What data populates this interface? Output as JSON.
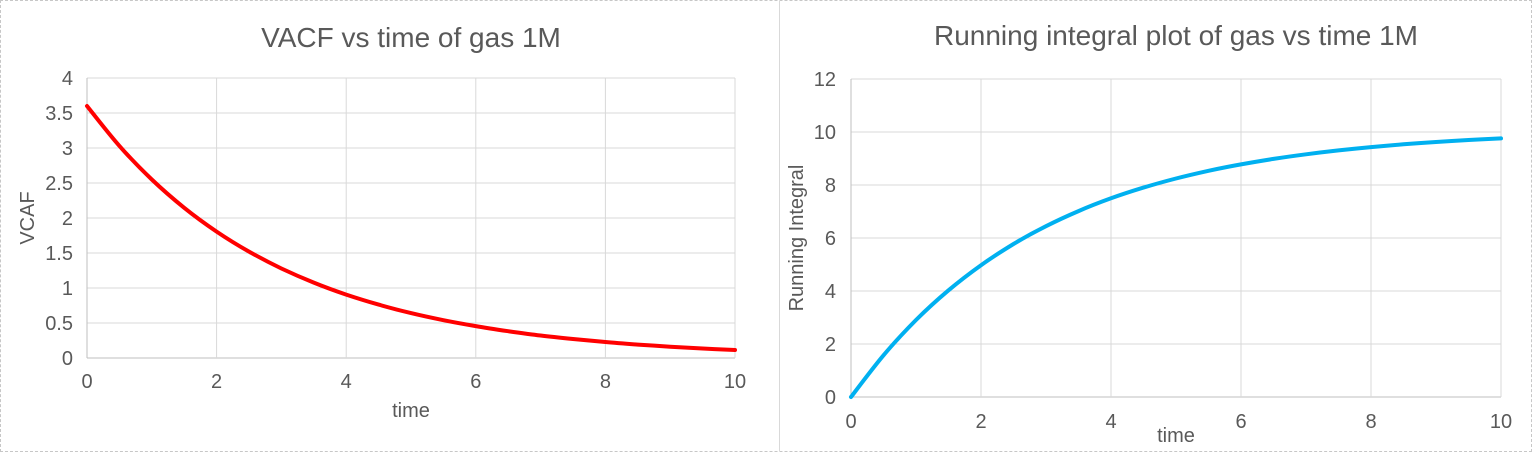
{
  "theme": {
    "background": "#ffffff",
    "text_color": "#595959",
    "grid_color": "#d9d9d9",
    "axis_color": "#bfbfbf",
    "panel_border_color": "#d9d9d9",
    "outer_border_color": "#c7c7c7"
  },
  "chart_data": [
    {
      "type": "line",
      "title": "VACF vs time of gas 1M",
      "xlabel": "time",
      "ylabel": "VCAF",
      "xlim": [
        0,
        10
      ],
      "ylim": [
        0,
        4
      ],
      "x_ticks": [
        "0",
        "2",
        "4",
        "6",
        "8",
        "10"
      ],
      "y_ticks": [
        "0",
        "0.5",
        "1",
        "1.5",
        "2",
        "2.5",
        "3",
        "3.5",
        "4"
      ],
      "grid": true,
      "legend": "none",
      "series": [
        {
          "color": "#ff0000",
          "x": [
            0,
            0.5,
            1,
            1.5,
            2,
            2.5,
            3,
            3.5,
            4,
            4.5,
            5,
            5.5,
            6,
            6.5,
            7,
            7.5,
            8,
            8.5,
            9,
            9.5,
            10
          ],
          "y": [
            3.6,
            3.03,
            2.55,
            2.146,
            1.806,
            1.52,
            1.279,
            1.077,
            0.906,
            0.763,
            0.642,
            0.54,
            0.455,
            0.383,
            0.322,
            0.271,
            0.228,
            0.192,
            0.162,
            0.136,
            0.114
          ]
        }
      ]
    },
    {
      "type": "line",
      "title": "Running integral plot of gas vs time 1M",
      "xlabel": "time",
      "ylabel": "Running Integral",
      "xlim": [
        0,
        10
      ],
      "ylim": [
        0,
        12
      ],
      "x_ticks": [
        "0",
        "2",
        "4",
        "6",
        "8",
        "10"
      ],
      "y_ticks": [
        "0",
        "2",
        "4",
        "6",
        "8",
        "10",
        "12"
      ],
      "grid": true,
      "legend": "none",
      "series": [
        {
          "color": "#00b0f0",
          "x": [
            0,
            0.5,
            1,
            1.5,
            2,
            2.5,
            3,
            3.5,
            4,
            4.5,
            5,
            5.5,
            6,
            6.5,
            7,
            7.5,
            8,
            8.5,
            9,
            9.5,
            10
          ],
          "y": [
            0,
            1.575,
            2.904,
            4.026,
            4.973,
            5.772,
            6.447,
            7.016,
            7.497,
            7.903,
            8.245,
            8.535,
            8.779,
            8.985,
            9.158,
            9.305,
            9.429,
            9.534,
            9.622,
            9.697,
            9.759
          ]
        }
      ]
    }
  ]
}
